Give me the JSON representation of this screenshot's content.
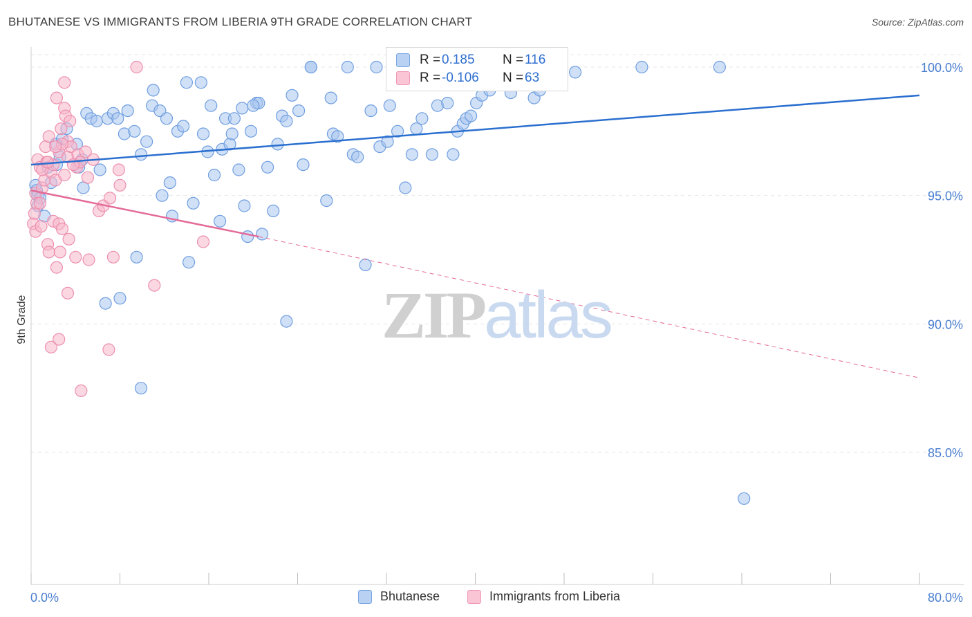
{
  "header": {
    "title": "BHUTANESE VS IMMIGRANTS FROM LIBERIA 9TH GRADE CORRELATION CHART",
    "source": "Source: ZipAtlas.com"
  },
  "watermark": {
    "zip": "ZIP",
    "atlas": "atlas"
  },
  "legend": {
    "rows": [
      {
        "r_label": "R =",
        "r_value": "0.185",
        "n_label": "N =",
        "n_value": "116"
      },
      {
        "r_label": "R =",
        "r_value": "-0.106",
        "n_label": "N =",
        "n_value": "63"
      }
    ]
  },
  "bottom_legend": {
    "series1": "Bhutanese",
    "series2": "Immigrants from Liberia"
  },
  "colors": {
    "blue_fill": "#a9c6ef",
    "blue_stroke": "#6f9ee0",
    "blue_line": "#2a6fcf",
    "pink_fill": "#f7b6cb",
    "pink_stroke": "#ec8fae",
    "pink_line": "#e46a98",
    "grid": "#e6e6e6",
    "axis_text": "#4a7fd0"
  },
  "chart_data": {
    "type": "scatter",
    "title": "BHUTANESE VS IMMIGRANTS FROM LIBERIA 9TH GRADE CORRELATION CHART",
    "xlabel": "",
    "ylabel": "9th Grade",
    "xlim": [
      0,
      80
    ],
    "ylim": [
      80.5,
      101
    ],
    "x_tick_labels": [
      "0.0%",
      "80.0%"
    ],
    "y_ticks": [
      85,
      90,
      95,
      100
    ],
    "y_tick_labels": [
      "85.0%",
      "90.0%",
      "95.0%",
      "100.0%"
    ],
    "grid": true,
    "legend_position": "top-center",
    "series": [
      {
        "name": "Bhutanese",
        "R": 0.185,
        "N": 116,
        "trend": {
          "x": [
            0,
            80
          ],
          "y": [
            96.2,
            98.9
          ]
        },
        "points": [
          [
            0.4,
            95.4
          ],
          [
            0.5,
            95.2
          ],
          [
            0.6,
            95.0
          ],
          [
            0.6,
            94.6
          ],
          [
            0.8,
            94.9
          ],
          [
            1.2,
            94.2
          ],
          [
            1.5,
            96.1
          ],
          [
            1.8,
            95.5
          ],
          [
            2.2,
            97.0
          ],
          [
            2.3,
            96.2
          ],
          [
            2.6,
            96.5
          ],
          [
            2.8,
            97.2
          ],
          [
            3.2,
            97.6
          ],
          [
            4.1,
            97.0
          ],
          [
            4.3,
            96.1
          ],
          [
            4.6,
            96.4
          ],
          [
            4.7,
            95.3
          ],
          [
            5.0,
            98.2
          ],
          [
            5.4,
            98.0
          ],
          [
            5.9,
            97.9
          ],
          [
            6.2,
            96.0
          ],
          [
            6.9,
            98.0
          ],
          [
            7.4,
            98.2
          ],
          [
            7.8,
            98.0
          ],
          [
            8.4,
            97.4
          ],
          [
            8.7,
            98.3
          ],
          [
            9.3,
            97.5
          ],
          [
            9.9,
            96.6
          ],
          [
            10.4,
            97.1
          ],
          [
            10.9,
            98.5
          ],
          [
            11.0,
            99.1
          ],
          [
            11.6,
            98.3
          ],
          [
            11.8,
            95.0
          ],
          [
            12.2,
            98.0
          ],
          [
            12.5,
            95.5
          ],
          [
            12.7,
            94.2
          ],
          [
            13.2,
            97.5
          ],
          [
            13.7,
            97.7
          ],
          [
            14.0,
            99.4
          ],
          [
            14.2,
            92.4
          ],
          [
            14.6,
            94.7
          ],
          [
            15.3,
            99.4
          ],
          [
            15.5,
            97.4
          ],
          [
            15.9,
            96.7
          ],
          [
            16.2,
            98.5
          ],
          [
            16.5,
            95.8
          ],
          [
            17.0,
            94.0
          ],
          [
            17.2,
            96.8
          ],
          [
            17.5,
            98.0
          ],
          [
            17.9,
            97.0
          ],
          [
            18.1,
            97.4
          ],
          [
            18.3,
            98.0
          ],
          [
            18.7,
            96.0
          ],
          [
            19.0,
            98.4
          ],
          [
            19.2,
            94.6
          ],
          [
            19.5,
            93.4
          ],
          [
            19.8,
            97.5
          ],
          [
            20.3,
            98.6
          ],
          [
            20.5,
            98.6
          ],
          [
            20.8,
            93.5
          ],
          [
            21.3,
            96.1
          ],
          [
            21.8,
            94.4
          ],
          [
            22.2,
            97.0
          ],
          [
            22.6,
            98.1
          ],
          [
            23.0,
            97.9
          ],
          [
            23.5,
            98.9
          ],
          [
            24.1,
            98.3
          ],
          [
            24.5,
            96.2
          ],
          [
            25.2,
            100.0
          ],
          [
            25.2,
            100.0
          ],
          [
            26.6,
            94.8
          ],
          [
            27.0,
            98.8
          ],
          [
            27.2,
            97.4
          ],
          [
            27.6,
            97.3
          ],
          [
            28.5,
            100.0
          ],
          [
            29.0,
            96.6
          ],
          [
            29.4,
            96.5
          ],
          [
            30.1,
            92.3
          ],
          [
            30.6,
            98.3
          ],
          [
            31.1,
            100.0
          ],
          [
            31.4,
            96.9
          ],
          [
            32.1,
            97.1
          ],
          [
            32.3,
            98.5
          ],
          [
            33.0,
            97.5
          ],
          [
            33.7,
            95.3
          ],
          [
            34.3,
            96.6
          ],
          [
            34.7,
            97.6
          ],
          [
            35.2,
            98.0
          ],
          [
            36.1,
            96.6
          ],
          [
            36.6,
            98.5
          ],
          [
            37.5,
            98.6
          ],
          [
            38.0,
            96.6
          ],
          [
            38.4,
            97.5
          ],
          [
            38.9,
            97.8
          ],
          [
            39.2,
            98.0
          ],
          [
            39.6,
            98.1
          ],
          [
            40.1,
            98.6
          ],
          [
            40.6,
            98.9
          ],
          [
            41.3,
            99.1
          ],
          [
            41.8,
            99.4
          ],
          [
            43.2,
            99.0
          ],
          [
            44.4,
            99.3
          ],
          [
            45.3,
            98.8
          ],
          [
            45.8,
            99.1
          ],
          [
            46.5,
            99.5
          ],
          [
            47.3,
            100.0
          ],
          [
            49.0,
            99.8
          ],
          [
            55.0,
            100.0
          ],
          [
            62.0,
            100.0
          ],
          [
            64.2,
            83.2
          ],
          [
            8.0,
            91.0
          ],
          [
            6.7,
            90.8
          ],
          [
            9.9,
            87.5
          ],
          [
            23.0,
            90.1
          ],
          [
            9.5,
            92.6
          ],
          [
            20.0,
            98.5
          ]
        ]
      },
      {
        "name": "Immigrants from Liberia",
        "R": -0.106,
        "N": 63,
        "trend": {
          "x": [
            0,
            20.5
          ],
          "y": [
            95.2,
            93.4
          ]
        },
        "trend_dashed": {
          "x": [
            20.5,
            80
          ],
          "y": [
            93.4,
            87.9
          ]
        },
        "points": [
          [
            0.2,
            93.9
          ],
          [
            0.3,
            94.3
          ],
          [
            0.4,
            95.1
          ],
          [
            0.4,
            93.6
          ],
          [
            0.5,
            94.7
          ],
          [
            0.6,
            96.4
          ],
          [
            0.8,
            96.1
          ],
          [
            0.9,
            93.8
          ],
          [
            1.0,
            95.3
          ],
          [
            1.2,
            95.6
          ],
          [
            1.3,
            96.9
          ],
          [
            1.4,
            96.3
          ],
          [
            1.5,
            93.1
          ],
          [
            1.6,
            92.8
          ],
          [
            1.6,
            97.3
          ],
          [
            1.8,
            95.9
          ],
          [
            2.0,
            96.2
          ],
          [
            2.0,
            94.0
          ],
          [
            2.2,
            95.6
          ],
          [
            2.3,
            92.2
          ],
          [
            2.3,
            98.8
          ],
          [
            2.5,
            93.9
          ],
          [
            2.5,
            96.7
          ],
          [
            2.6,
            92.8
          ],
          [
            2.7,
            97.6
          ],
          [
            2.8,
            93.7
          ],
          [
            3.0,
            98.4
          ],
          [
            3.0,
            95.8
          ],
          [
            3.0,
            99.4
          ],
          [
            3.1,
            98.1
          ],
          [
            3.3,
            97.1
          ],
          [
            3.3,
            96.5
          ],
          [
            3.3,
            91.2
          ],
          [
            3.4,
            93.3
          ],
          [
            3.5,
            97.9
          ],
          [
            3.6,
            96.9
          ],
          [
            4.0,
            92.6
          ],
          [
            4.1,
            96.1
          ],
          [
            4.2,
            96.6
          ],
          [
            4.4,
            96.3
          ],
          [
            4.9,
            96.7
          ],
          [
            5.1,
            95.7
          ],
          [
            5.2,
            92.5
          ],
          [
            5.6,
            96.4
          ],
          [
            6.1,
            94.4
          ],
          [
            6.5,
            94.6
          ],
          [
            7.1,
            94.9
          ],
          [
            7.4,
            92.6
          ],
          [
            7.9,
            96.0
          ],
          [
            8.0,
            95.4
          ],
          [
            9.5,
            100.0
          ],
          [
            11.1,
            91.5
          ],
          [
            15.5,
            93.2
          ],
          [
            1.8,
            89.1
          ],
          [
            2.5,
            89.4
          ],
          [
            4.5,
            87.4
          ],
          [
            7.0,
            89.0
          ],
          [
            2.8,
            97.0
          ],
          [
            1.0,
            96.0
          ],
          [
            1.5,
            96.3
          ],
          [
            3.8,
            96.2
          ],
          [
            2.2,
            96.9
          ],
          [
            0.8,
            94.7
          ]
        ]
      }
    ]
  }
}
